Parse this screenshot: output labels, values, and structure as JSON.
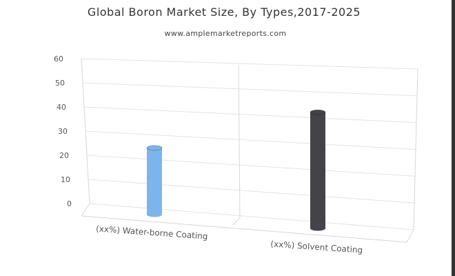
{
  "chart_data": {
    "type": "bar",
    "title": "Global Boron Market Size, By Types,2017-2025",
    "subtitle": "www.amplemarketreports.com",
    "categories": [
      "(xx%) Water-borne Coating",
      "(xx%) Solvent Coating"
    ],
    "values": [
      27,
      47
    ],
    "colors": [
      "#7cb5ec",
      "#434348"
    ],
    "ylim": [
      0,
      60
    ],
    "yticks": [
      0,
      10,
      20,
      30,
      40,
      50,
      60
    ],
    "grid": true,
    "legend": "none",
    "style": "3d-cylinder"
  }
}
